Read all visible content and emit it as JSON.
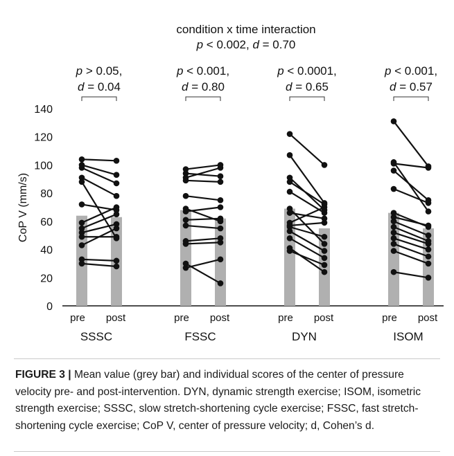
{
  "chart_data": {
    "type": "bar",
    "ylabel": "CoP V (mm/s)",
    "ylim": [
      0,
      140
    ],
    "yticks": [
      0,
      20,
      40,
      60,
      80,
      100,
      120,
      140
    ],
    "header": {
      "line1": "condition x time interaction",
      "line2_p": "p",
      "line2_mid": " < 0.002, ",
      "line2_d": "d",
      "line2_end": " = 0.70"
    },
    "groups": [
      {
        "name": "SSSC",
        "timepoints": [
          "pre",
          "post"
        ],
        "mean": [
          64,
          63
        ],
        "stat_p": " > 0.05,",
        "stat_d": " = 0.04",
        "individuals": [
          [
            30,
            28
          ],
          [
            33,
            32
          ],
          [
            43,
            55
          ],
          [
            49,
            49
          ],
          [
            52,
            58
          ],
          [
            55,
            65
          ],
          [
            59,
            70
          ],
          [
            72,
            68
          ],
          [
            88,
            48
          ],
          [
            91,
            78
          ],
          [
            98,
            87
          ],
          [
            100,
            93
          ],
          [
            104,
            103
          ]
        ]
      },
      {
        "name": "FSSC",
        "timepoints": [
          "pre",
          "post"
        ],
        "mean": [
          68,
          62
        ],
        "stat_p": " < 0.001,",
        "stat_d": " = 0.80",
        "individuals": [
          [
            27,
            33
          ],
          [
            30,
            16
          ],
          [
            44,
            45
          ],
          [
            46,
            48
          ],
          [
            57,
            55
          ],
          [
            61,
            62
          ],
          [
            67,
            70
          ],
          [
            69,
            60
          ],
          [
            78,
            75
          ],
          [
            89,
            88
          ],
          [
            91,
            98
          ],
          [
            94,
            92
          ],
          [
            97,
            100
          ]
        ]
      },
      {
        "name": "DYN",
        "timepoints": [
          "pre",
          "post"
        ],
        "mean": [
          69,
          55
        ],
        "stat_p": " < 0.0001,",
        "stat_d": " = 0.65",
        "individuals": [
          [
            39,
            29
          ],
          [
            41,
            24
          ],
          [
            48,
            34
          ],
          [
            53,
            39
          ],
          [
            56,
            49
          ],
          [
            57,
            59
          ],
          [
            59,
            70
          ],
          [
            66,
            62
          ],
          [
            69,
            44
          ],
          [
            81,
            66
          ],
          [
            88,
            72
          ],
          [
            91,
            68
          ],
          [
            107,
            73
          ],
          [
            122,
            100
          ]
        ]
      },
      {
        "name": "ISOM",
        "timepoints": [
          "pre",
          "post"
        ],
        "mean": [
          66,
          55
        ],
        "stat_p": " < 0.001,",
        "stat_d": " = 0.57",
        "individuals": [
          [
            24,
            20
          ],
          [
            39,
            30
          ],
          [
            44,
            35
          ],
          [
            48,
            40
          ],
          [
            52,
            44
          ],
          [
            56,
            46
          ],
          [
            60,
            50
          ],
          [
            63,
            57
          ],
          [
            66,
            56
          ],
          [
            83,
            73
          ],
          [
            96,
            75
          ],
          [
            101,
            98
          ],
          [
            102,
            67
          ],
          [
            131,
            99
          ]
        ]
      }
    ]
  },
  "caption": {
    "label": "FIGURE 3 |",
    "text": " Mean value (grey bar) and individual scores of the center of pressure velocity pre- and post-intervention. DYN, dynamic strength exercise; ISOM, isometric strength exercise; SSSC, slow stretch-shortening cycle exercise; FSSC, fast stretch-shortening cycle exercise; CoP V, center of pressure velocity; d, Cohen’s d."
  },
  "colors": {
    "bar": "#b0b0b0",
    "line": "#111111",
    "marker": "#111111",
    "axis": "#111111",
    "rule": "#c9c9c9"
  }
}
